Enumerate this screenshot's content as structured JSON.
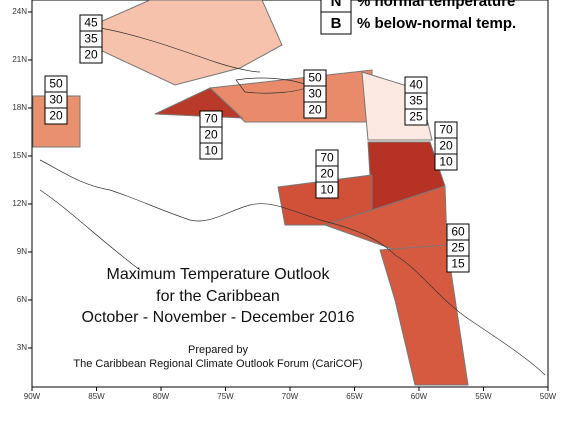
{
  "map": {
    "title": [
      "Maximum Temperature Outlook",
      "for the Caribbean",
      "October - November - December 2016"
    ],
    "prepared_by": "Prepared by",
    "forum": "The Caribbean Regional Climate Outlook Forum (CariCOF)",
    "legend": [
      {
        "key": "N",
        "label": "% normal temperature"
      },
      {
        "key": "B",
        "label": "% below-normal temp."
      }
    ],
    "lon_ticks": [
      "90W",
      "85W",
      "80W",
      "75W",
      "70W",
      "65W",
      "60W",
      "55W",
      "50W"
    ],
    "lat_ticks": [
      "24N",
      "21N",
      "18N",
      "15N",
      "12N",
      "9N",
      "6N",
      "3N"
    ],
    "regions": [
      {
        "values": [
          45,
          35,
          20
        ]
      },
      {
        "values": [
          50,
          30,
          20
        ]
      },
      {
        "values": [
          70,
          20,
          10
        ]
      },
      {
        "values": [
          50,
          30,
          20
        ]
      },
      {
        "values": [
          40,
          35,
          25
        ]
      },
      {
        "values": [
          70,
          20,
          10
        ]
      },
      {
        "values": [
          70,
          20,
          10
        ]
      },
      {
        "values": [
          60,
          25,
          15
        ]
      }
    ]
  }
}
